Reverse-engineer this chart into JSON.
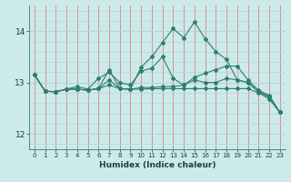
{
  "xlabel": "Humidex (Indice chaleur)",
  "background_color": "#cceaea",
  "line_color": "#2e7d6e",
  "red_grid_color": "#e08080",
  "white_grid_color": "#b0d8d8",
  "xlim": [
    -0.5,
    23.5
  ],
  "ylim": [
    11.7,
    14.5
  ],
  "yticks": [
    12,
    13,
    14
  ],
  "xticks": [
    0,
    1,
    2,
    3,
    4,
    5,
    6,
    7,
    8,
    9,
    10,
    11,
    12,
    13,
    14,
    15,
    16,
    17,
    18,
    19,
    20,
    21,
    22,
    23
  ],
  "series": [
    [
      13.15,
      12.83,
      12.82,
      12.87,
      12.87,
      12.85,
      12.88,
      13.25,
      12.88,
      12.87,
      13.3,
      13.5,
      13.78,
      14.05,
      13.87,
      14.18,
      13.85,
      13.6,
      13.45,
      13.05,
      13.0,
      12.82,
      12.72,
      12.42
    ],
    [
      13.15,
      12.83,
      12.82,
      12.87,
      12.87,
      12.85,
      12.88,
      13.05,
      12.88,
      12.87,
      12.9,
      12.9,
      12.92,
      12.92,
      12.95,
      13.1,
      13.18,
      13.25,
      13.32,
      13.32,
      13.05,
      12.85,
      12.75,
      12.42
    ],
    [
      13.15,
      12.83,
      12.82,
      12.87,
      12.87,
      12.85,
      12.88,
      12.95,
      12.88,
      12.87,
      12.87,
      12.88,
      12.88,
      12.88,
      12.88,
      12.88,
      12.88,
      12.88,
      12.88,
      12.88,
      12.88,
      12.8,
      12.68,
      12.42
    ],
    [
      13.15,
      12.83,
      12.82,
      12.87,
      12.92,
      12.87,
      13.08,
      13.2,
      13.0,
      12.95,
      13.22,
      13.28,
      13.5,
      13.08,
      12.95,
      13.05,
      13.0,
      13.0,
      13.08,
      13.05,
      13.0,
      12.82,
      12.72,
      12.42
    ]
  ],
  "xlabel_fontsize": 6.5,
  "tick_fontsize": 6.0
}
